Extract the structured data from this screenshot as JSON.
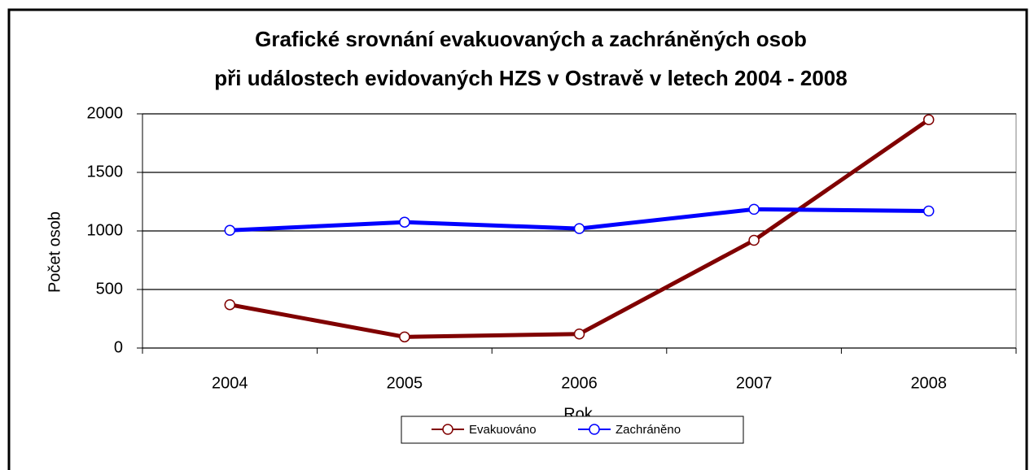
{
  "chart_data": {
    "type": "line",
    "title": [
      "Grafické srovnání evakuovaných a zachráněných osob",
      "při událostech evidovaných HZS v Ostravě v letech 2004 - 2008"
    ],
    "x_label": "Rok",
    "y_label": "Počet osob",
    "categories": [
      "2004",
      "2005",
      "2006",
      "2007",
      "2008"
    ],
    "series": [
      {
        "name": "Evakuováno",
        "color": "#800000",
        "values": [
          370,
          95,
          120,
          920,
          1950
        ]
      },
      {
        "name": "Zachráněno",
        "color": "#0000ff",
        "values": [
          1005,
          1075,
          1020,
          1185,
          1170
        ]
      }
    ],
    "ylim": [
      0,
      2000
    ],
    "yticks": [
      0,
      500,
      1000,
      1500,
      2000
    ],
    "grid": true,
    "legend": "bottom"
  }
}
